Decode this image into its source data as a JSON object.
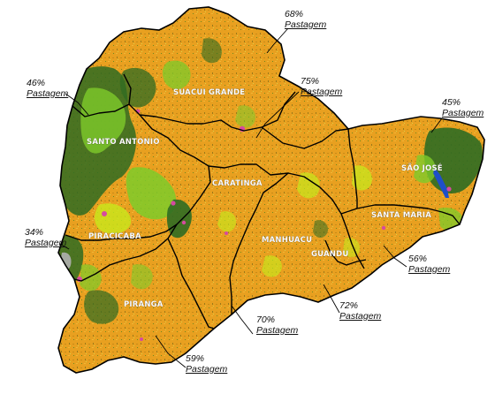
{
  "basins": [
    {
      "id": "suacui-grande",
      "label": "SUACUI GRANDE"
    },
    {
      "id": "santo-antonio",
      "label": "SANTO ANTONIO"
    },
    {
      "id": "caratinga",
      "label": "CARATINGA"
    },
    {
      "id": "sao-jose",
      "label": "SÃO JOSÉ"
    },
    {
      "id": "piracicaba",
      "label": "PIRACICABA"
    },
    {
      "id": "santa-maria",
      "label": "SANTA MARIA"
    },
    {
      "id": "manhuacu",
      "label": "MANHUACU"
    },
    {
      "id": "guandu",
      "label": "GUANDU"
    },
    {
      "id": "piranga",
      "label": "PIRANGA"
    }
  ],
  "annotations": [
    {
      "basin": "suacui-grande",
      "percent": "68%",
      "label": "Pastagem"
    },
    {
      "basin": "caratinga",
      "percent": "75%",
      "label": "Pastagem"
    },
    {
      "basin": "santo-antonio",
      "percent": "46%",
      "label": "Pastagem"
    },
    {
      "basin": "sao-jose",
      "percent": "45%",
      "label": "Pastagem"
    },
    {
      "basin": "piracicaba",
      "percent": "34%",
      "label": "Pastagem"
    },
    {
      "basin": "santa-maria",
      "percent": "56%",
      "label": "Pastagem"
    },
    {
      "basin": "guandu",
      "percent": "72%",
      "label": "Pastagem"
    },
    {
      "basin": "manhuacu",
      "percent": "70%",
      "label": "Pastagem"
    },
    {
      "basin": "piranga",
      "percent": "59%",
      "label": "Pastagem"
    }
  ],
  "colors": {
    "pasture": "#e8a020",
    "forest": "#2f6b22",
    "secondary_vegetation": "#7ecb2a",
    "bright_vegetation": "#c8e81c",
    "urban": "#d64aa0",
    "water": "#1f4fc8",
    "bare": "#b0b0b0",
    "boundary": "#000000"
  }
}
